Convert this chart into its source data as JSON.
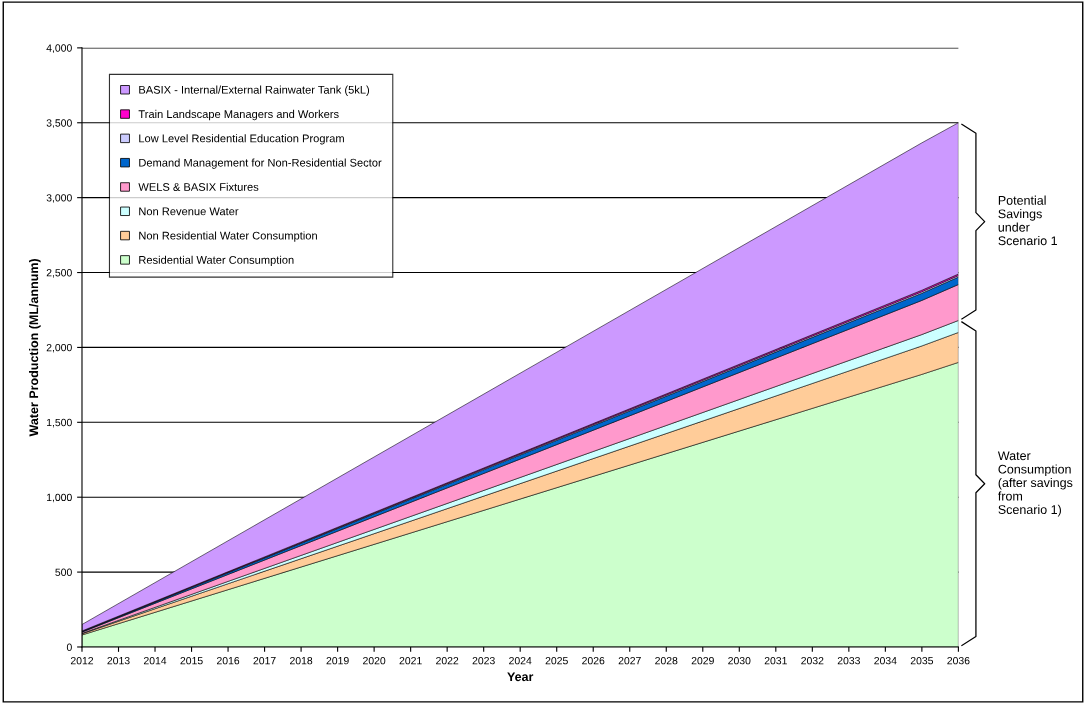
{
  "chart_data": {
    "type": "area",
    "stacked": true,
    "xlabel": "Year",
    "ylabel": "Water Production (ML/annum)",
    "x": [
      2012,
      2035,
      2036
    ],
    "series": [
      {
        "name": "Residential Water Consumption",
        "color": "#ccffcc",
        "values": [
          80,
          1820,
          1900
        ]
      },
      {
        "name": "Non Residential Water Consumption",
        "color": "#ffcc99",
        "values": [
          8,
          190,
          200
        ]
      },
      {
        "name": "Non Revenue Water",
        "color": "#ccffff",
        "values": [
          3,
          76,
          80
        ]
      },
      {
        "name": "WELS & BASIX Fixtures",
        "color": "#ff99cc",
        "values": [
          8,
          228,
          240
        ]
      },
      {
        "name": "Demand Management for Non-Residential Sector",
        "color": "#0066cc",
        "values": [
          4,
          48,
          50
        ]
      },
      {
        "name": "Low Level Residential Education Program",
        "color": "#ccccff",
        "values": [
          2,
          10,
          10
        ]
      },
      {
        "name": "Train Landscape Managers and Workers",
        "color": "#ff00cc",
        "values": [
          2,
          10,
          10
        ]
      },
      {
        "name": "BASIX - Internal/External Rainwater Tank (5kL)",
        "color": "#cc99ff",
        "values": [
          43,
          984,
          1010
        ]
      }
    ],
    "xlim": [
      2012,
      2036
    ],
    "xticks": [
      2012,
      2013,
      2014,
      2015,
      2016,
      2017,
      2018,
      2019,
      2020,
      2021,
      2022,
      2023,
      2024,
      2025,
      2026,
      2027,
      2028,
      2029,
      2030,
      2031,
      2032,
      2033,
      2034,
      2035,
      2036
    ],
    "ylim": [
      0,
      4000
    ],
    "yticks": [
      {
        "value": 0,
        "label": "0"
      },
      {
        "value": 500,
        "label": "500"
      },
      {
        "value": 1000,
        "label": "1,000"
      },
      {
        "value": 1500,
        "label": "1,500"
      },
      {
        "value": 2000,
        "label": "2,000"
      },
      {
        "value": 2500,
        "label": "2,500"
      },
      {
        "value": 3000,
        "label": "3,000"
      },
      {
        "value": 3500,
        "label": "3,500"
      },
      {
        "value": 4000,
        "label": "4,000"
      }
    ],
    "grid": "y",
    "legend": "top left",
    "annotations": [
      "Potential\nSavings\nunder\nScenario 1",
      "Water\nConsumption\n(after savings\nfrom\nScenario 1)"
    ]
  }
}
